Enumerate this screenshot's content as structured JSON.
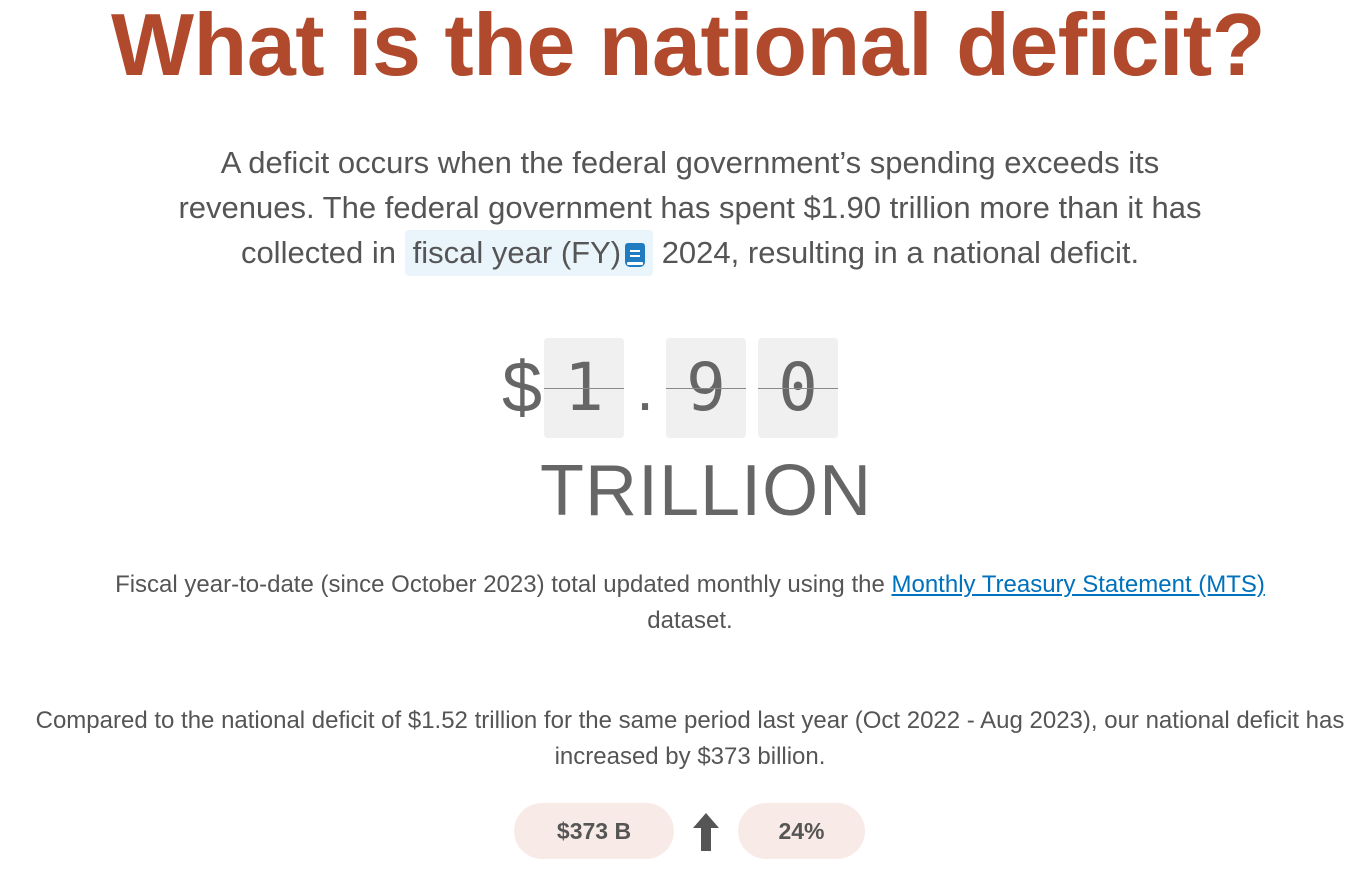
{
  "header": {
    "title": "What is the national deficit?"
  },
  "intro": {
    "text_before": "A deficit occurs when the federal government’s spending exceeds its revenues. The federal government has spent $1.90 trillion more than it has collected in ",
    "glossary_term": "fiscal year (FY)",
    "text_after": " 2024, resulting in a national deficit."
  },
  "counter": {
    "currency": "$",
    "digit_1": "1",
    "separator": ".",
    "digit_2": "9",
    "digit_3": "0",
    "unit": "TRILLION"
  },
  "source": {
    "text_before": "Fiscal year-to-date (since October 2023) total updated monthly using the ",
    "link_text": "Monthly Treasury Statement (MTS)",
    "text_after": " dataset."
  },
  "comparison": {
    "text": "Compared to the national deficit of $1.52 trillion for the same period last year (Oct 2022 - Aug 2023), our national deficit has increased by $373 billion.",
    "change_amount": "$373 B",
    "change_direction_icon": "arrow-up-icon",
    "change_percent": "24%"
  },
  "colors": {
    "title": "#b1492c",
    "text": "#555555",
    "link": "#0071bc",
    "glossary_bg": "#e9f4fb",
    "glossary_icon": "#1f7cc0",
    "pill_bg": "#f8ebe7",
    "digit_bg": "#f0f0f0"
  }
}
